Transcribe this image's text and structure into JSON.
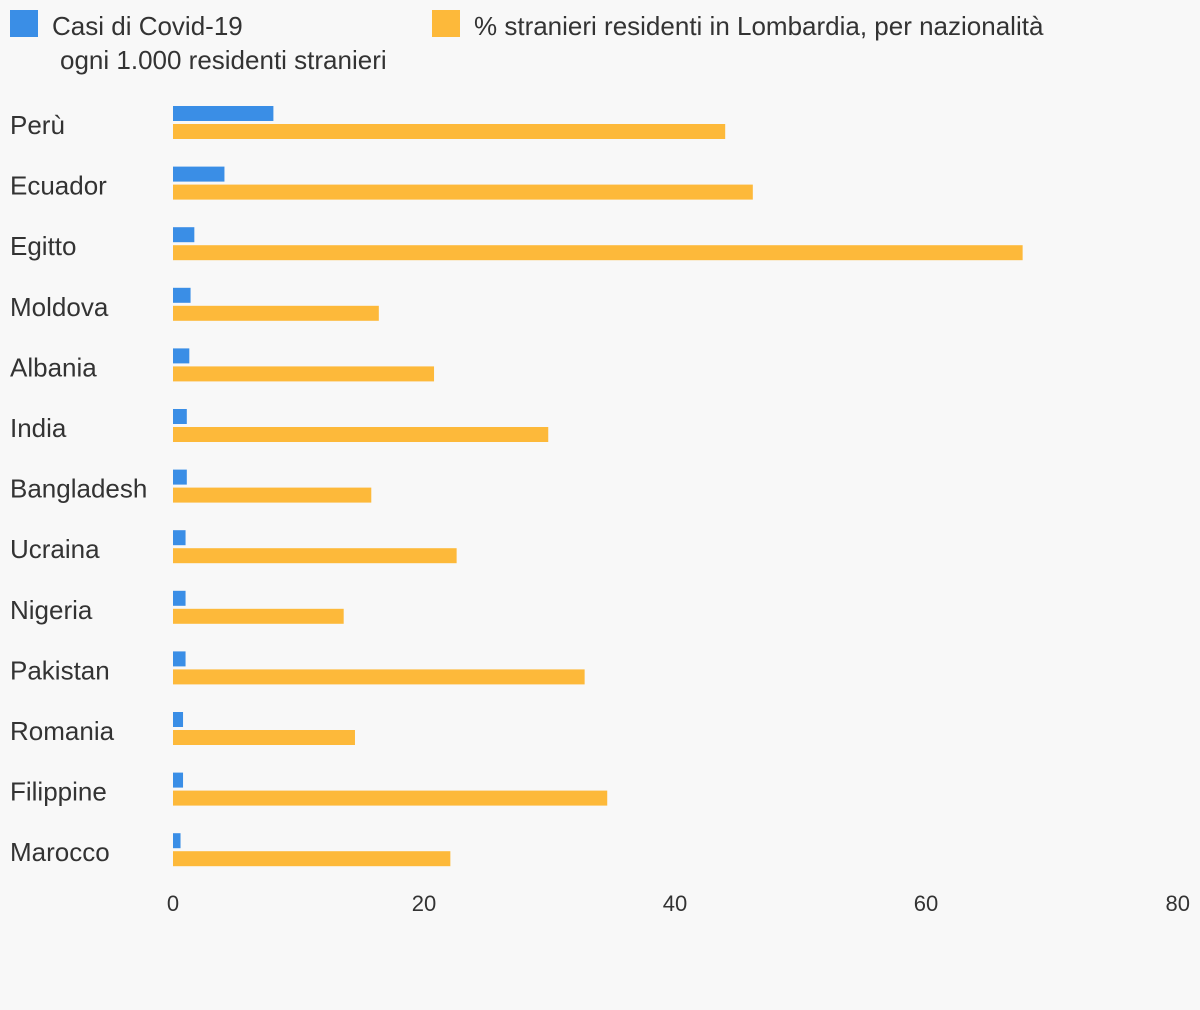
{
  "legend": {
    "series1_line1": "Casi di Covid-19",
    "series1_line2": "ogni 1.000 residenti stranieri",
    "series2": "% stranieri residenti in Lombardia, per nazionalità"
  },
  "colors": {
    "series1": "#3a8ee6",
    "series2": "#fdb93a",
    "background": "#f8f8f8",
    "text": "#333333"
  },
  "chart_data": {
    "type": "bar",
    "orientation": "horizontal",
    "title": "",
    "xlabel": "",
    "ylabel": "",
    "categories": [
      "Perù",
      "Ecuador",
      "Egitto",
      "Moldova",
      "Albania",
      "India",
      "Bangladesh",
      "Ucraina",
      "Nigeria",
      "Pakistan",
      "Romania",
      "Filippine",
      "Marocco"
    ],
    "series": [
      {
        "name": "Casi di Covid-19 ogni 1.000 residenti stranieri",
        "color": "#3a8ee6",
        "values": [
          8.0,
          4.1,
          1.7,
          1.4,
          1.3,
          1.1,
          1.1,
          1.0,
          1.0,
          1.0,
          0.8,
          0.8,
          0.6
        ]
      },
      {
        "name": "% stranieri residenti in Lombardia, per nazionalità",
        "color": "#fdb93a",
        "values": [
          44.0,
          46.2,
          67.7,
          16.4,
          20.8,
          29.9,
          15.8,
          22.6,
          13.6,
          32.8,
          14.5,
          34.6,
          22.1
        ]
      }
    ],
    "xlim": [
      0,
      80
    ],
    "xticks": [
      0,
      20,
      40,
      60,
      80
    ],
    "grid": false,
    "legend_position": "top"
  }
}
